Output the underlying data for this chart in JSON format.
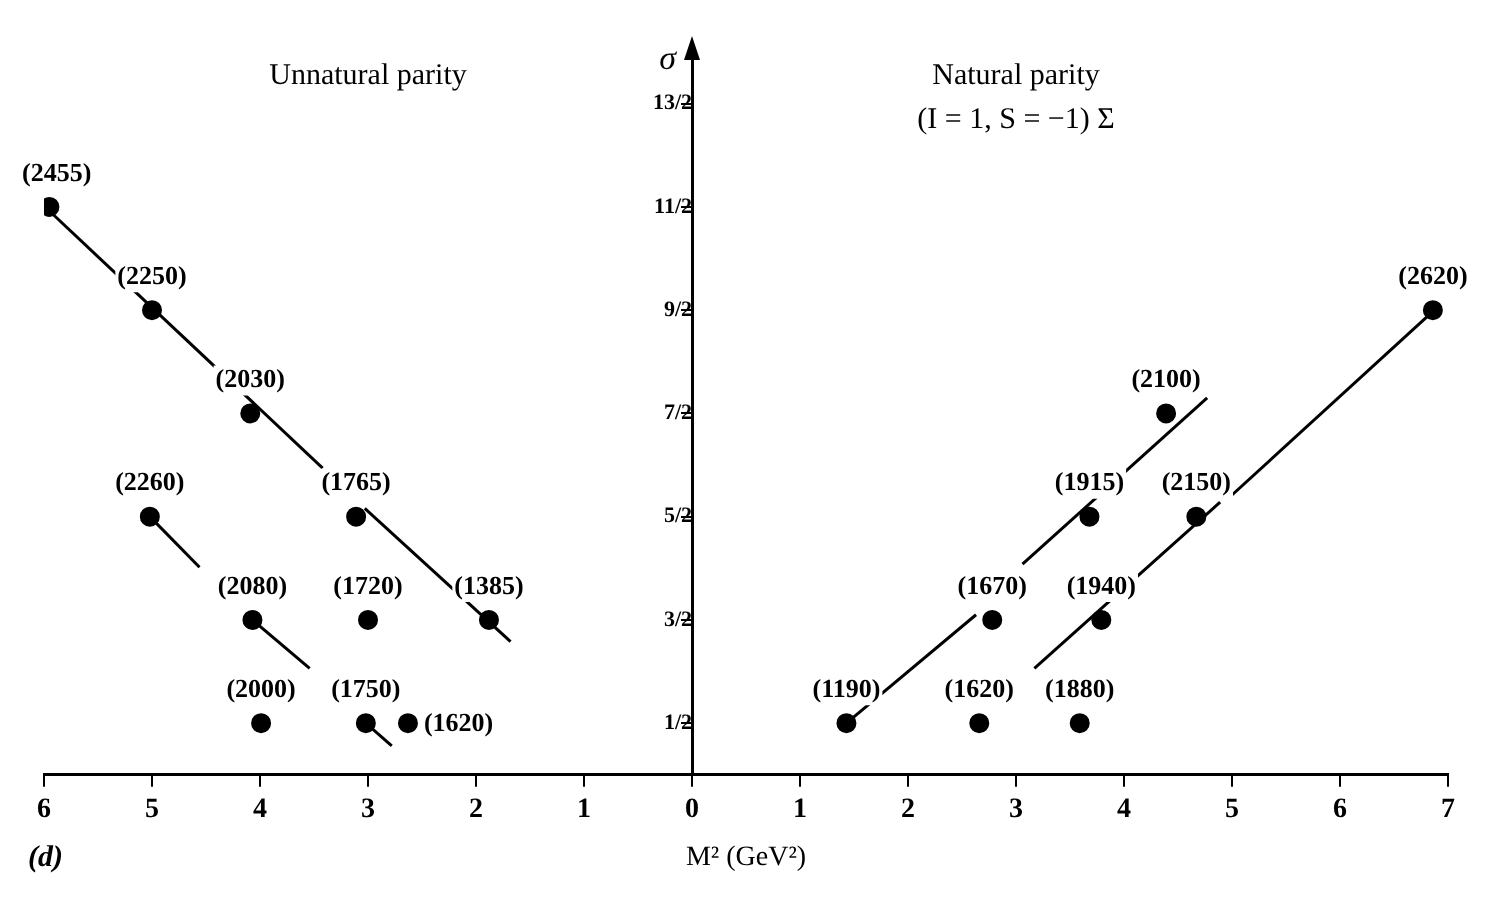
{
  "chart_data": {
    "type": "scatter",
    "xlabel": "M² (GeV²)",
    "ylabel": "σ",
    "xlim": [
      -6,
      7
    ],
    "xticks": [
      {
        "value": -6,
        "label": "6"
      },
      {
        "value": -5,
        "label": "5"
      },
      {
        "value": -4,
        "label": "4"
      },
      {
        "value": -3,
        "label": "3"
      },
      {
        "value": -2,
        "label": "2"
      },
      {
        "value": -1,
        "label": "1"
      },
      0,
      1,
      2,
      3,
      4,
      5,
      6,
      7
    ],
    "ylim": [
      0,
      7
    ],
    "yticks": [
      {
        "value": 0.5,
        "label": "1/2"
      },
      {
        "value": 1.5,
        "label": "3/2"
      },
      {
        "value": 2.5,
        "label": "5/2"
      },
      {
        "value": 3.5,
        "label": "7/2"
      },
      {
        "value": 4.5,
        "label": "9/2"
      },
      {
        "value": 5.5,
        "label": "11/2"
      },
      {
        "value": 6.5,
        "label": "13/2"
      }
    ],
    "grid": false,
    "legend": false,
    "marker": "circle",
    "series": [
      {
        "color": "#000000",
        "x": [
          -5.95,
          -5.0,
          -4.09,
          -3.11,
          -1.88,
          -5.02,
          -4.07,
          -3.0,
          -3.99,
          -3.02,
          -2.63,
          1.43,
          2.66,
          3.59,
          2.78,
          3.79,
          3.68,
          4.67,
          4.39,
          6.86
        ],
        "values": [
          5.5,
          4.5,
          3.5,
          2.5,
          1.5,
          2.5,
          1.5,
          1.5,
          0.5,
          0.5,
          0.5,
          0.5,
          0.5,
          0.5,
          1.5,
          1.5,
          2.5,
          2.5,
          3.5,
          4.5
        ]
      },
      {
        "type": "line",
        "marker": "none",
        "color": "#000000",
        "x": [
          -5.95,
          -3.42
        ],
        "values": [
          5.46,
          2.97
        ]
      },
      {
        "type": "line",
        "marker": "none",
        "color": "#000000",
        "x": [
          -3.03,
          -1.68
        ],
        "values": [
          2.58,
          1.29
        ]
      },
      {
        "type": "line",
        "marker": "none",
        "color": "#000000",
        "x": [
          -5.02,
          -4.56
        ],
        "values": [
          2.5,
          2.01
        ]
      },
      {
        "type": "line",
        "marker": "none",
        "color": "#000000",
        "x": [
          -4.07,
          -3.54
        ],
        "values": [
          1.5,
          1.03
        ]
      },
      {
        "type": "line",
        "marker": "none",
        "color": "#000000",
        "x": [
          -3.02,
          -2.78
        ],
        "values": [
          0.5,
          0.28
        ]
      },
      {
        "type": "line",
        "marker": "none",
        "color": "#000000",
        "x": [
          1.43,
          2.63
        ],
        "values": [
          0.5,
          1.55
        ]
      },
      {
        "type": "line",
        "marker": "none",
        "color": "#000000",
        "x": [
          3.06,
          4.77
        ],
        "values": [
          2.04,
          3.65
        ]
      },
      {
        "type": "line",
        "marker": "none",
        "color": "#000000",
        "x": [
          3.17,
          4.89
        ],
        "values": [
          1.03,
          2.64
        ]
      },
      {
        "type": "line",
        "marker": "none",
        "color": "#000000",
        "x": [
          4.99,
          6.83
        ],
        "values": [
          2.7,
          4.46
        ]
      }
    ],
    "annotations": [
      "Unnatural parity",
      "Natural parity",
      "(I = 1, S = −1) Σ",
      "(d)",
      {
        "text": "(2455)",
        "x": -5.95,
        "y": 5.5
      },
      {
        "text": "(2250)",
        "x": -5.0,
        "y": 4.5
      },
      {
        "text": "(2030)",
        "x": -4.09,
        "y": 3.5
      },
      {
        "text": "(1765)",
        "x": -3.11,
        "y": 2.5
      },
      {
        "text": "(1385)",
        "x": -1.88,
        "y": 1.5
      },
      {
        "text": "(2260)",
        "x": -5.02,
        "y": 2.5
      },
      {
        "text": "(2080)",
        "x": -4.07,
        "y": 1.5
      },
      {
        "text": "(1720)",
        "x": -3.0,
        "y": 1.5
      },
      {
        "text": "(2000)",
        "x": -3.99,
        "y": 0.5
      },
      {
        "text": "(1750)",
        "x": -3.02,
        "y": 0.5
      },
      {
        "text": "(1620)",
        "x": -2.63,
        "y": 0.5
      },
      {
        "text": "(1190)",
        "x": 1.43,
        "y": 0.5
      },
      {
        "text": "(1620)",
        "x": 2.66,
        "y": 0.5
      },
      {
        "text": "(1880)",
        "x": 3.59,
        "y": 0.5
      },
      {
        "text": "(1670)",
        "x": 2.78,
        "y": 1.5
      },
      {
        "text": "(1940)",
        "x": 3.79,
        "y": 1.5
      },
      {
        "text": "(1915)",
        "x": 3.68,
        "y": 2.5
      },
      {
        "text": "(2150)",
        "x": 4.67,
        "y": 2.5
      },
      {
        "text": "(2100)",
        "x": 4.39,
        "y": 3.5
      },
      {
        "text": "(2620)",
        "x": 6.86,
        "y": 4.5
      }
    ]
  }
}
